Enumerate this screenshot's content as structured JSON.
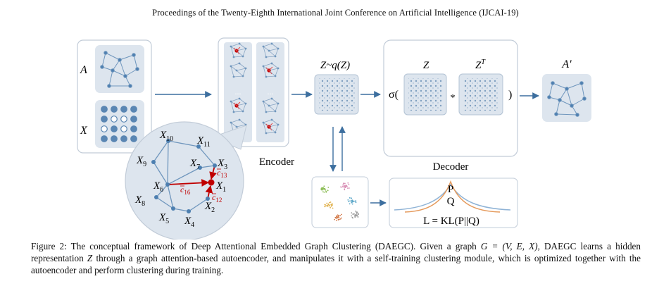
{
  "header": {
    "running_head": "Proceedings of the Twenty-Eighth International Joint Conference on Artificial Intelligence (IJCAI-19)"
  },
  "figure": {
    "input_A_label": "A",
    "input_X_label": "X",
    "encoder_label": "Encoder",
    "ellipsis": "...",
    "latent_label": "Z~q(Z)",
    "decoder_label": "Decoder",
    "sigma_open": "σ(",
    "z_label": "Z",
    "zt_label": "Z",
    "zt_sup": "T",
    "times_symbol": "*",
    "close_paren": ")",
    "output_label": "A'",
    "loss_P": "P",
    "loss_Q": "Q",
    "loss_eq": "L = KL(P||Q)",
    "nodes": {
      "x10": {
        "base": "X",
        "sub": "10"
      },
      "x11": {
        "base": "X",
        "sub": "11"
      },
      "x9": {
        "base": "X",
        "sub": "9"
      },
      "x7": {
        "base": "X",
        "sub": "7"
      },
      "x3": {
        "base": "X",
        "sub": "3"
      },
      "x6": {
        "base": "X",
        "sub": "6"
      },
      "x1": {
        "base": "X",
        "sub": "1"
      },
      "x8": {
        "base": "X",
        "sub": "8"
      },
      "x2": {
        "base": "X",
        "sub": "2"
      },
      "x5": {
        "base": "X",
        "sub": "5"
      },
      "x4": {
        "base": "X",
        "sub": "4"
      }
    },
    "coefficients": {
      "c13": {
        "base": "c",
        "sub": "13"
      },
      "c16": {
        "base": "c",
        "sub": "16"
      },
      "c12": {
        "base": "c",
        "sub": "12"
      }
    },
    "colors": {
      "panel_fill": "#dde5ee",
      "panel_stroke": "#c2ccd8",
      "node_blue": "#4d7fb0",
      "edge_blue": "#6f96bd",
      "attention_red": "#c00000",
      "arrow": "#3d6f9f",
      "curve_orange": "#e59a5c",
      "curve_blue": "#8fb3d6"
    }
  },
  "caption": {
    "prefix": "Figure 2: The conceptual framework of Deep Attentional Embedded Graph Clustering (DAEGC). Given a graph ",
    "math_G": "G = (V, E, X)",
    "mid1": ", DAEGC learns a hidden representation ",
    "math_Z": "Z",
    "suffix": " through a graph attention-based autoencoder, and manipulates it with a self-training clustering module, which is optimized together with the autoencoder and perform clustering during training."
  }
}
